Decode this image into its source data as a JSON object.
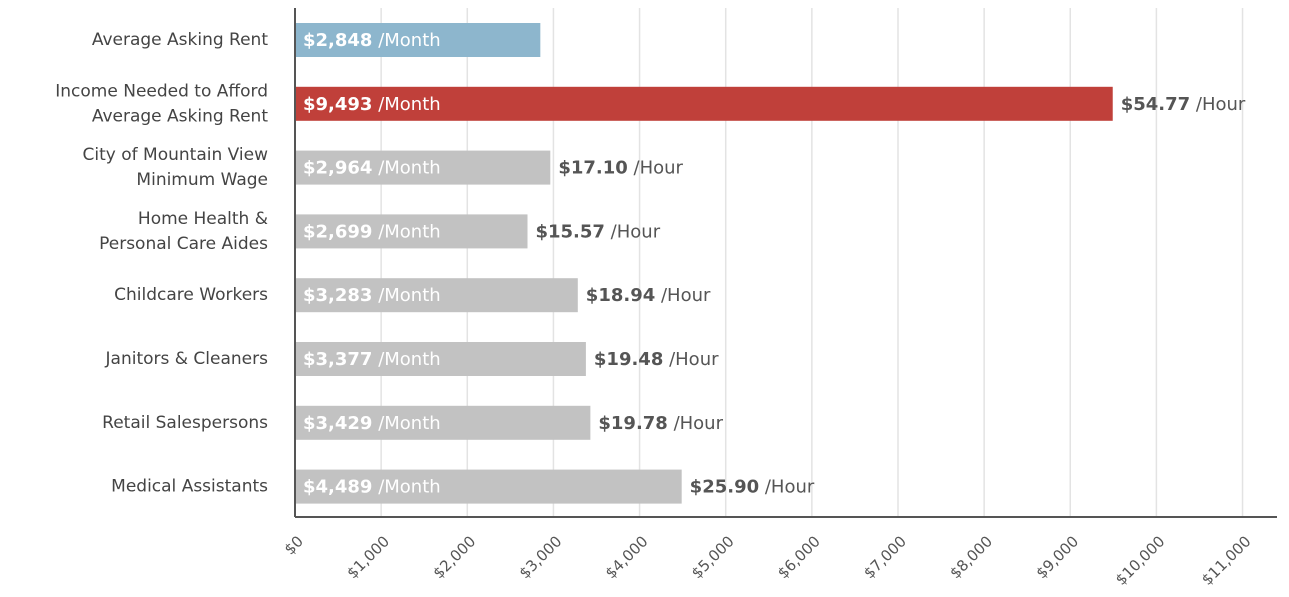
{
  "chart_data": {
    "type": "hbar",
    "categories": [
      "Average Asking Rent",
      "Income Needed to Afford\nAverage Asking Rent",
      "City of Mountain View\nMinimum Wage",
      "Home Health &\nPersonal Care Aides",
      "Childcare Workers",
      "Janitors & Cleaners",
      "Retail Salespersons",
      "Medical Assistants"
    ],
    "values": [
      2848,
      9493,
      2964,
      2699,
      3283,
      3377,
      3429,
      4489
    ],
    "value_labels": [
      "$2,848 /Month",
      "$9,493 /Month",
      "$2,964 /Month",
      "$2,699 /Month",
      "$3,283 /Month",
      "$3,377 /Month",
      "$3,429 /Month",
      "$4,489 /Month"
    ],
    "hourly_labels": [
      null,
      "$54.77 /Hour",
      "$17.10 /Hour",
      "$15.57 /Hour",
      "$18.94 /Hour",
      "$19.48 /Hour",
      "$19.78 /Hour",
      "$25.90 /Hour"
    ],
    "colors": [
      "#8db6cd",
      "#c0403a",
      "#c2c2c2",
      "#c2c2c2",
      "#c2c2c2",
      "#c2c2c2",
      "#c2c2c2",
      "#c2c2c2"
    ],
    "xlim": [
      0,
      11400
    ],
    "xticks": [
      {
        "value": 0,
        "label": "$0"
      },
      {
        "value": 1000,
        "label": "$1,000"
      },
      {
        "value": 2000,
        "label": "$2,000"
      },
      {
        "value": 3000,
        "label": "$3,000"
      },
      {
        "value": 4000,
        "label": "$4,000"
      },
      {
        "value": 5000,
        "label": "$5,000"
      },
      {
        "value": 6000,
        "label": "$6,000"
      },
      {
        "value": 7000,
        "label": "$7,000"
      },
      {
        "value": 8000,
        "label": "$8,000"
      },
      {
        "value": 9000,
        "label": "$9,000"
      },
      {
        "value": 10000,
        "label": "$10,000"
      },
      {
        "value": 11000,
        "label": "$11,000"
      }
    ],
    "grid": true
  }
}
